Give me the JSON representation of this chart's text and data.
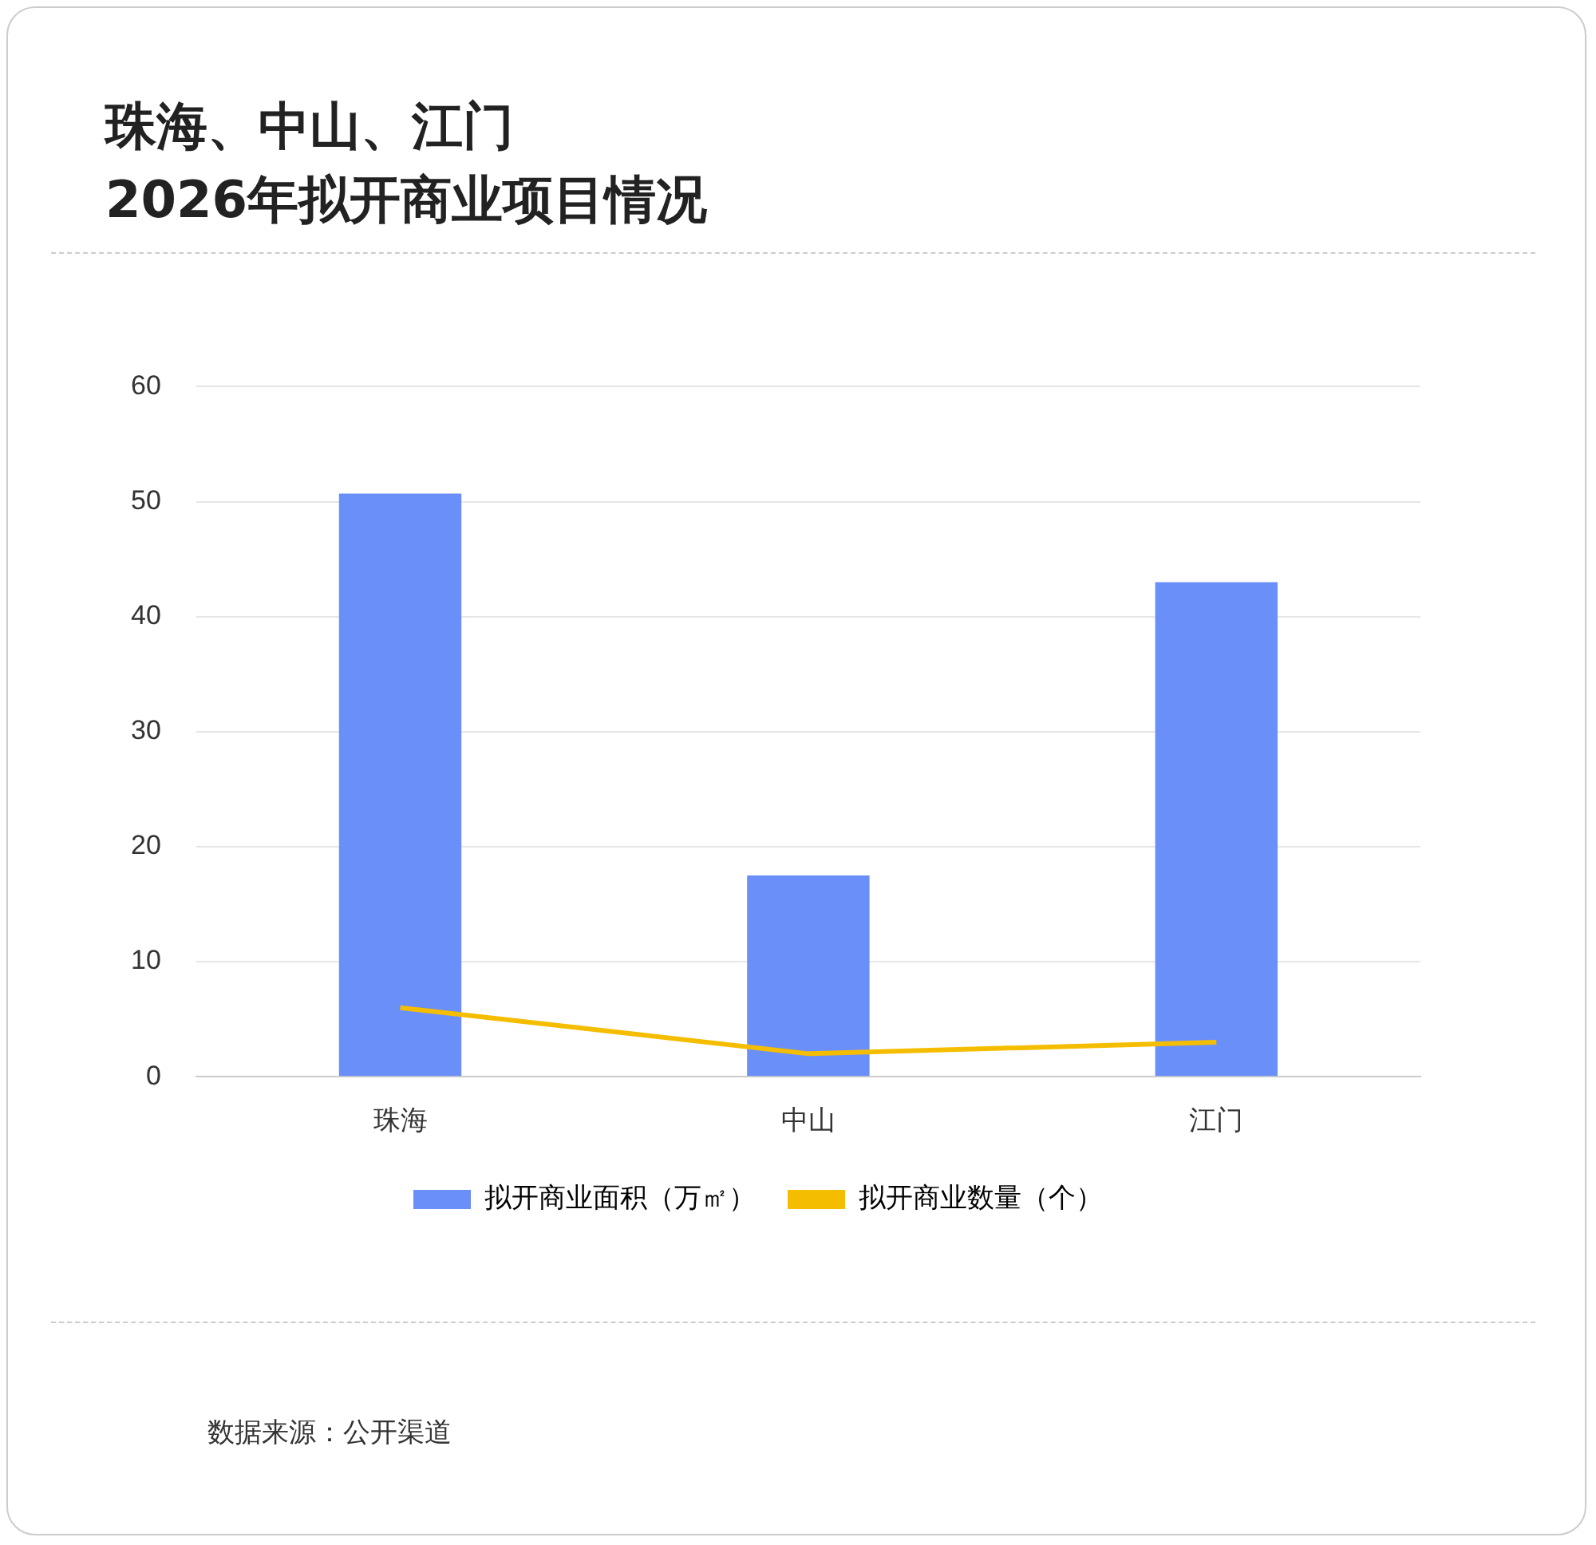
{
  "chart_data": {
    "type": "bar",
    "title": "珠海、中山、江门\n2026年拟开商业项目情况",
    "categories": [
      "珠海",
      "中山",
      "江门"
    ],
    "series": [
      {
        "name": "拟开商业面积（万㎡）",
        "color": "#6b8ff8",
        "values": [
          50.7,
          17.5,
          43
        ]
      },
      {
        "name": "拟开商业数量（个）",
        "type": "line",
        "color": "#f5bd00",
        "values": [
          6,
          2,
          3
        ]
      }
    ],
    "ylim": [
      0,
      60
    ],
    "yticks": [
      0,
      10,
      20,
      30,
      40,
      50,
      60
    ],
    "grid": "y",
    "legend": "bottom",
    "marker": "none",
    "line_style": "solid",
    "annotations": [
      "数据来源：公开渠道"
    ]
  }
}
